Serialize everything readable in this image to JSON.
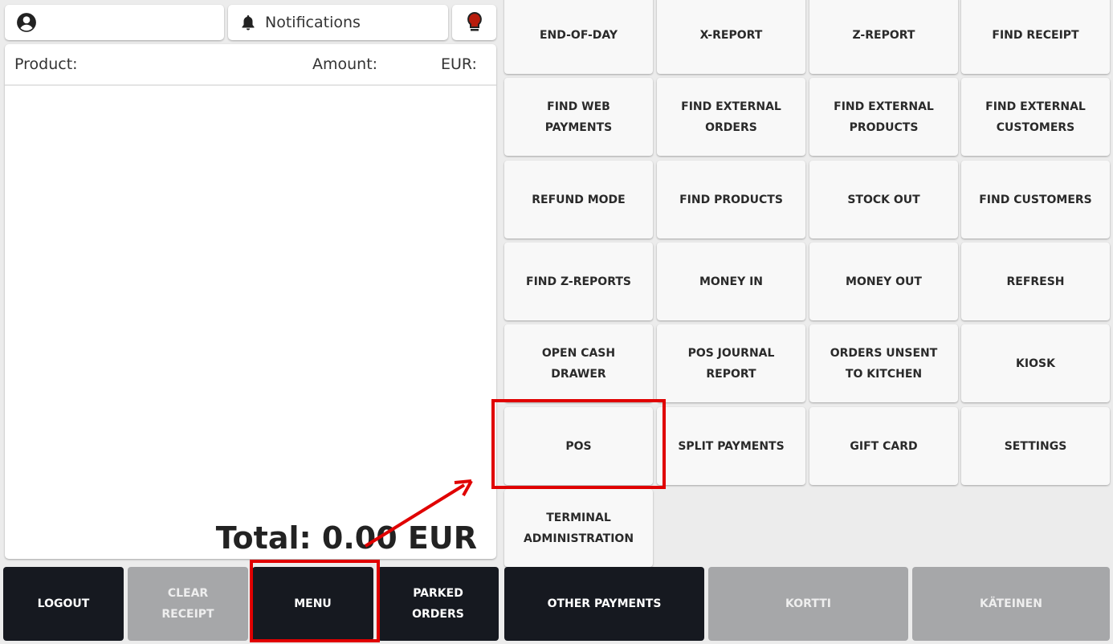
{
  "header": {
    "notifications_label": "Notifications",
    "user_icon": "user-circle-icon",
    "bell_icon": "bell-icon",
    "bulb_icon": "lightbulb-icon",
    "bulb_color": "#b81c0c"
  },
  "receipt": {
    "col_product": "Product:",
    "col_amount": "Amount:",
    "col_currency": "EUR:",
    "total": "Total: 0.00 EUR"
  },
  "menu": {
    "tiles": [
      "END-OF-DAY",
      "X-REPORT",
      "Z-REPORT",
      "FIND RECEIPT",
      "FIND WEB PAYMENTS",
      "FIND EXTERNAL ORDERS",
      "FIND EXTERNAL PRODUCTS",
      "FIND EXTERNAL CUSTOMERS",
      "REFUND MODE",
      "FIND PRODUCTS",
      "STOCK OUT",
      "FIND CUSTOMERS",
      "FIND Z-REPORTS",
      "MONEY IN",
      "MONEY OUT",
      "REFRESH",
      "OPEN CASH DRAWER",
      "POS JOURNAL REPORT",
      "ORDERS UNSENT TO KITCHEN",
      "KIOSK",
      "POS",
      "SPLIT PAYMENTS",
      "GIFT CARD",
      "SETTINGS",
      "TERMINAL ADMINISTRATION"
    ]
  },
  "bottom": {
    "logout": "LOGOUT",
    "clear_receipt": "CLEAR RECEIPT",
    "menu": "MENU",
    "parked_orders": "PARKED ORDERS",
    "other_payments": "OTHER PAYMENTS",
    "kortti": "KORTTI",
    "kateinen": "KÄTEINEN"
  },
  "colors": {
    "dark_button": "#161920",
    "disabled_button": "#a6a7a9",
    "annotation": "#e00000"
  }
}
